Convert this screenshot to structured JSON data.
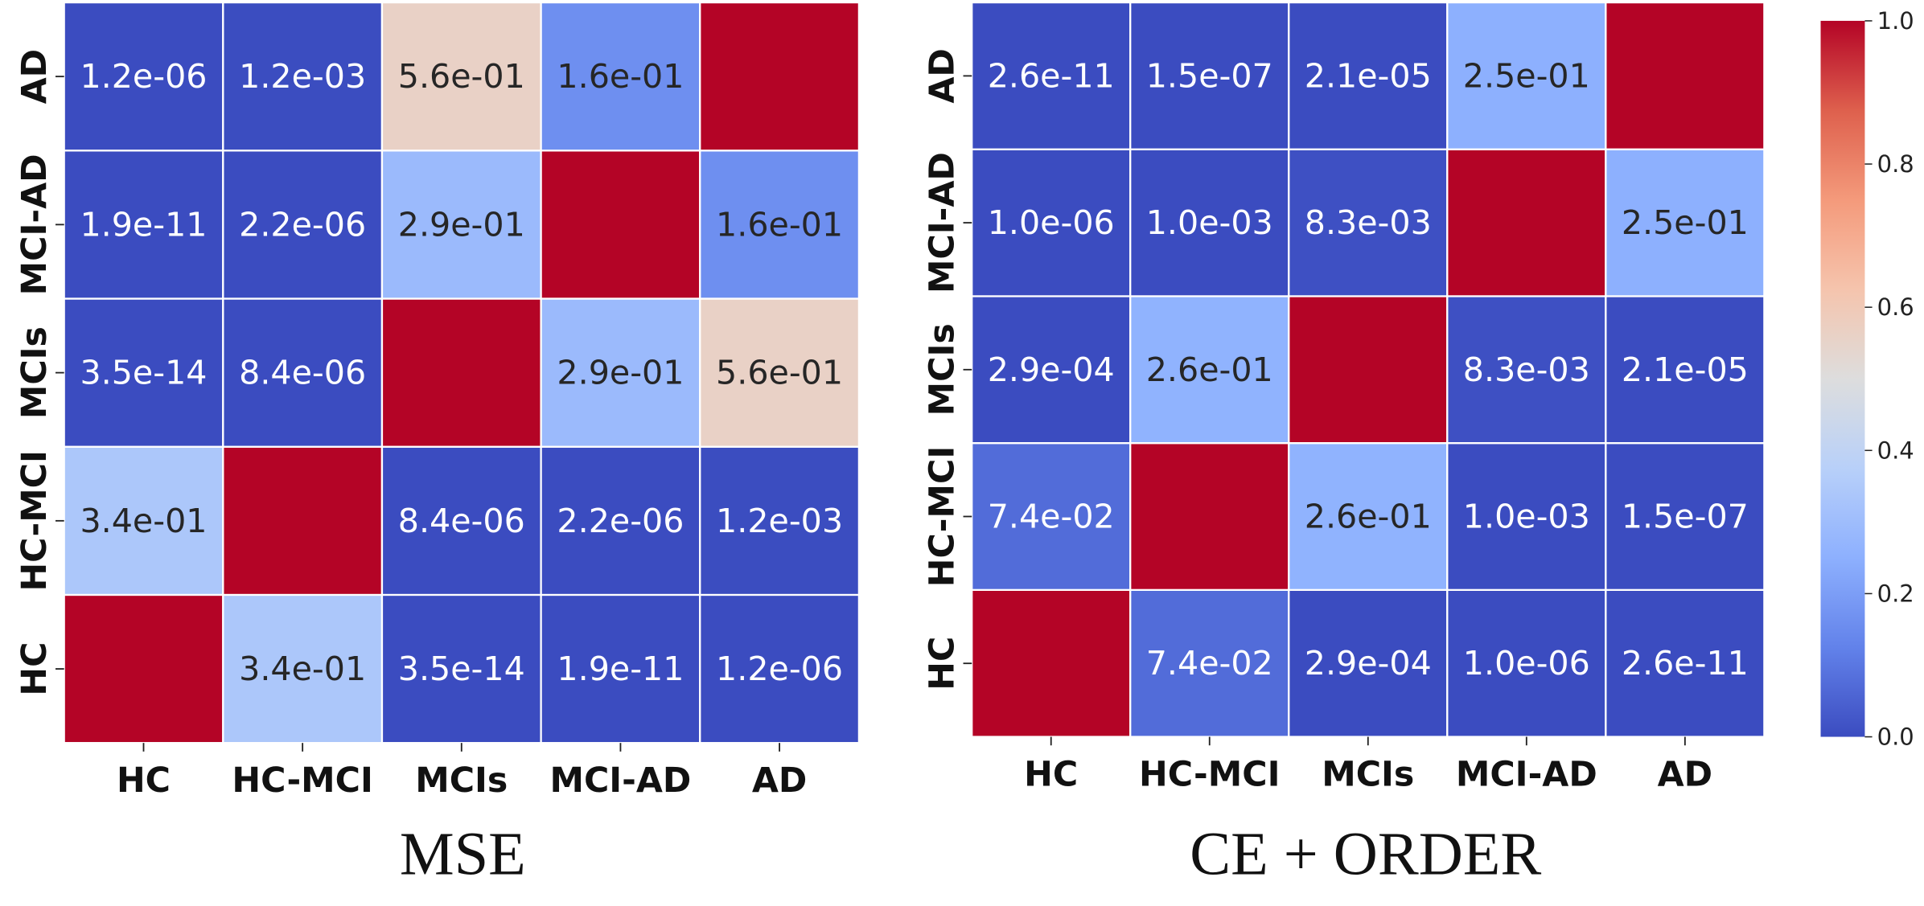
{
  "chart_data": [
    {
      "type": "heatmap",
      "title": "MSE",
      "x_categories": [
        "HC",
        "HC-MCI",
        "MCIs",
        "MCI-AD",
        "AD"
      ],
      "y_categories": [
        "HC",
        "HC-MCI",
        "MCIs",
        "MCI-AD",
        "AD"
      ],
      "values": [
        [
          1.0,
          0.34,
          3.5e-14,
          1.9e-11,
          1.2e-06
        ],
        [
          0.34,
          1.0,
          8.4e-06,
          2.2e-06,
          0.0012
        ],
        [
          3.5e-14,
          8.4e-06,
          1.0,
          0.29,
          0.56
        ],
        [
          1.9e-11,
          2.2e-06,
          0.29,
          1.0,
          0.16
        ],
        [
          1.2e-06,
          0.0012,
          0.56,
          0.16,
          1.0
        ]
      ],
      "value_labels": [
        [
          null,
          "3.4e-01",
          "3.5e-14",
          "1.9e-11",
          "1.2e-06"
        ],
        [
          "3.4e-01",
          null,
          "8.4e-06",
          "2.2e-06",
          "1.2e-03"
        ],
        [
          "3.5e-14",
          "8.4e-06",
          null,
          "2.9e-01",
          "5.6e-01"
        ],
        [
          "1.9e-11",
          "2.2e-06",
          "2.9e-01",
          null,
          "1.6e-01"
        ],
        [
          "1.2e-06",
          "1.2e-03",
          "5.6e-01",
          "1.6e-01",
          null
        ]
      ],
      "zlim": [
        0,
        1
      ],
      "colormap": "coolwarm"
    },
    {
      "type": "heatmap",
      "title": "CE + ORDER",
      "x_categories": [
        "HC",
        "HC-MCI",
        "MCIs",
        "MCI-AD",
        "AD"
      ],
      "y_categories": [
        "HC",
        "HC-MCI",
        "MCIs",
        "MCI-AD",
        "AD"
      ],
      "values": [
        [
          1.0,
          0.074,
          0.00029,
          1e-06,
          2.6e-11
        ],
        [
          0.074,
          1.0,
          0.26,
          0.001,
          1.5e-07
        ],
        [
          0.00029,
          0.26,
          1.0,
          0.0083,
          2.1e-05
        ],
        [
          1e-06,
          0.001,
          0.0083,
          1.0,
          0.25
        ],
        [
          2.6e-11,
          1.5e-07,
          2.1e-05,
          0.25,
          1.0
        ]
      ],
      "value_labels": [
        [
          null,
          "7.4e-02",
          "2.9e-04",
          "1.0e-06",
          "2.6e-11"
        ],
        [
          "7.4e-02",
          null,
          "2.6e-01",
          "1.0e-03",
          "1.5e-07"
        ],
        [
          "2.9e-04",
          "2.6e-01",
          null,
          "8.3e-03",
          "2.1e-05"
        ],
        [
          "1.0e-06",
          "1.0e-03",
          "8.3e-03",
          null,
          "2.5e-01"
        ],
        [
          "2.6e-11",
          "1.5e-07",
          "2.1e-05",
          "2.5e-01",
          null
        ]
      ],
      "zlim": [
        0,
        1
      ],
      "colormap": "coolwarm",
      "colorbar": true,
      "zticks": [
        {
          "value": 0,
          "label": "0.0"
        },
        {
          "value": 0.2,
          "label": "0.2"
        },
        {
          "value": 0.4,
          "label": "0.4"
        },
        {
          "value": 0.6,
          "label": "0.6"
        },
        {
          "value": 0.8,
          "label": "0.8"
        },
        {
          "value": 1,
          "label": "1.0"
        }
      ]
    }
  ]
}
